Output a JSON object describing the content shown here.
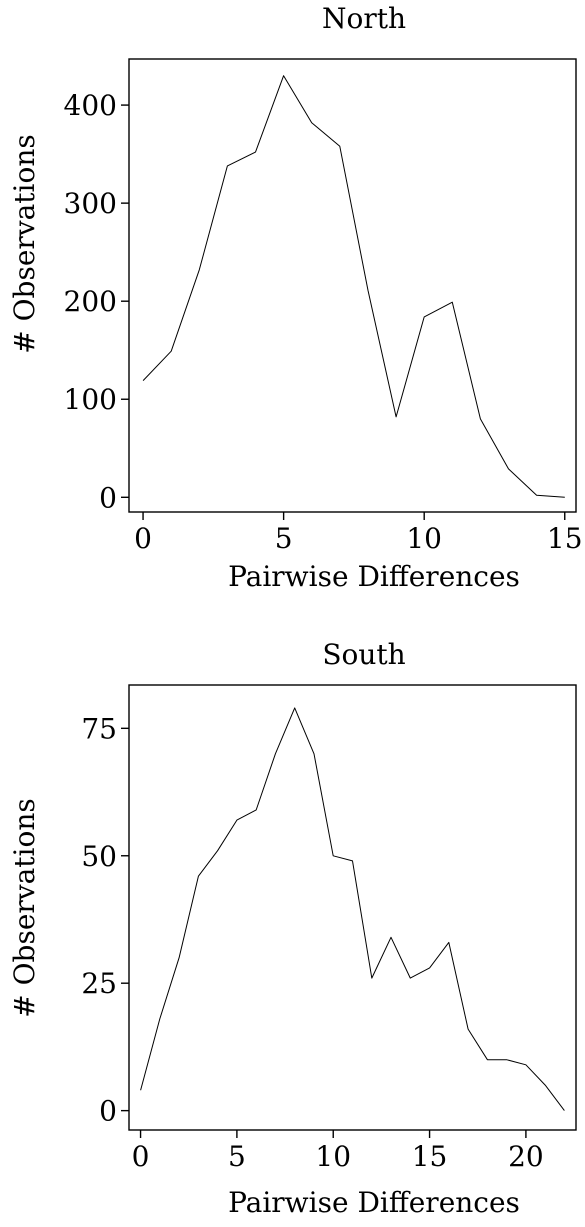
{
  "chart_data": [
    {
      "type": "line",
      "title": "North",
      "xlabel": "Pairwise Differences",
      "ylabel": "# Observations",
      "xlim": [
        -0.5,
        15.4
      ],
      "ylim": [
        -15,
        447
      ],
      "xticks": [
        0,
        5,
        10,
        15
      ],
      "yticks": [
        0,
        100,
        200,
        300,
        400
      ],
      "series": [
        {
          "x": [
            0,
            1,
            2,
            3,
            4,
            5,
            6,
            7,
            8,
            9,
            10,
            11,
            12,
            13,
            14,
            15
          ],
          "y": [
            119,
            149,
            232,
            338,
            352,
            430,
            382,
            358,
            211,
            82,
            184,
            199,
            80,
            29,
            2,
            0
          ]
        }
      ]
    },
    {
      "type": "line",
      "title": "South",
      "xlabel": "Pairwise Differences",
      "ylabel": "# Observations",
      "xlim": [
        -0.6,
        22.6
      ],
      "ylim": [
        -3.8,
        83.5
      ],
      "xticks": [
        0,
        5,
        10,
        15,
        20
      ],
      "yticks": [
        0,
        25,
        50,
        75
      ],
      "series": [
        {
          "x": [
            0,
            1,
            2,
            3,
            4,
            5,
            6,
            7,
            8,
            9,
            10,
            11,
            12,
            13,
            14,
            15,
            16,
            17,
            18,
            19,
            20,
            21,
            22
          ],
          "y": [
            4,
            18,
            30,
            46,
            51,
            57,
            59,
            70,
            79,
            70,
            50,
            49,
            26,
            34,
            26,
            28,
            33,
            16,
            10,
            10,
            9,
            5,
            0
          ]
        }
      ]
    }
  ]
}
